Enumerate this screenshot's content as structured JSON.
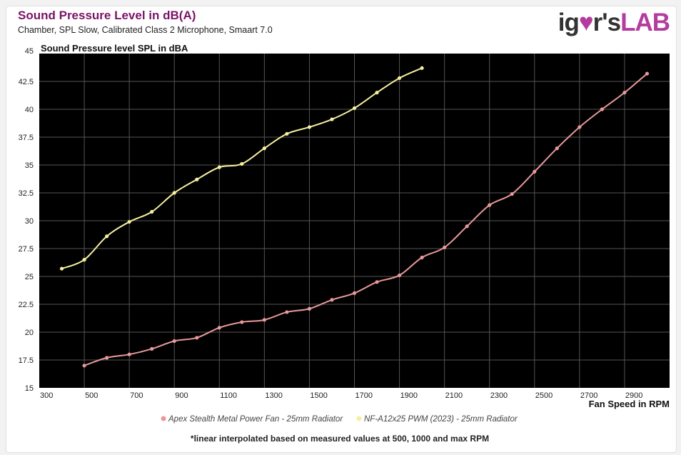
{
  "header": {
    "title": "Sound Pressure Level in dB(A)",
    "subtitle": "Chamber, SPL Slow, Calibrated Class 2 Microphone, Smaart 7.0",
    "logo_text": "igor'sLAB"
  },
  "footnote": "*linear interpolated based on measured values at 500, 1000 and max RPM",
  "chart_data": {
    "type": "line",
    "title": "Sound Pressure Level in dB(A)",
    "ylabel": "Sound Pressure level SPL in dBA",
    "xlabel": "Fan Speed in RPM",
    "xlim": [
      300,
      3100
    ],
    "ylim": [
      15,
      45
    ],
    "xticks": [
      300,
      500,
      700,
      900,
      1100,
      1300,
      1500,
      1700,
      1900,
      2100,
      2300,
      2500,
      2700,
      2900
    ],
    "yticks": [
      15,
      17.5,
      20,
      22.5,
      25,
      27.5,
      30,
      32.5,
      35,
      37.5,
      40,
      42.5,
      45
    ],
    "grid": true,
    "legend": "bottom-center",
    "series": [
      {
        "name": "Apex Stealth Metal Power Fan - 25mm Radiator",
        "color": "#e8999a",
        "x": [
          500,
          600,
          700,
          800,
          900,
          1000,
          1100,
          1200,
          1300,
          1400,
          1500,
          1600,
          1700,
          1800,
          1900,
          2000,
          2100,
          2200,
          2300,
          2400,
          2500,
          2600,
          2700,
          2800,
          2900,
          3000
        ],
        "y": [
          17.0,
          17.7,
          18.0,
          18.5,
          19.2,
          19.5,
          20.4,
          20.9,
          21.1,
          21.8,
          22.1,
          22.9,
          23.5,
          24.5,
          25.1,
          26.7,
          27.6,
          29.5,
          31.4,
          32.4,
          34.4,
          36.5,
          38.4,
          40.0,
          41.5,
          43.2
        ]
      },
      {
        "name": "NF-A12x25 PWM (2023) - 25mm Radiator",
        "color": "#f5eea0",
        "x": [
          400,
          500,
          600,
          700,
          800,
          900,
          1000,
          1100,
          1200,
          1300,
          1400,
          1500,
          1600,
          1700,
          1800,
          1900,
          2000
        ],
        "y": [
          25.7,
          26.5,
          28.6,
          29.9,
          30.8,
          32.5,
          33.7,
          34.8,
          35.1,
          36.5,
          37.8,
          38.4,
          39.1,
          40.1,
          41.5,
          42.8,
          43.7
        ]
      }
    ]
  }
}
